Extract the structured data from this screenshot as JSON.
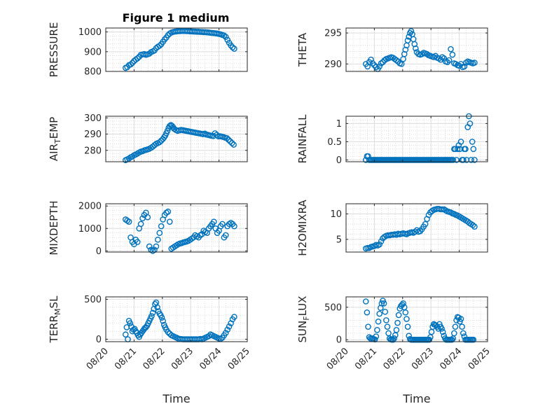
{
  "title": "Figure 1 medium",
  "x_axis_label": "Time",
  "x_tick_labels": [
    "08/20",
    "08/21",
    "08/22",
    "08/23",
    "08/24",
    "08/25"
  ],
  "marker_color": "#0072bd",
  "chart_data": [
    {
      "type": "scatter",
      "ylabel": "PRESSURE",
      "ylim": [
        800,
        1020
      ],
      "yticks": [
        800,
        900,
        1000
      ],
      "ytick_labels": [
        "800",
        "900",
        "1000"
      ],
      "grid": true,
      "minor_grid": true,
      "x": [
        0.7,
        0.76,
        0.82,
        0.88,
        0.94,
        1.0,
        1.06,
        1.12,
        1.18,
        1.24,
        1.3,
        1.36,
        1.42,
        1.48,
        1.54,
        1.6,
        1.66,
        1.72,
        1.78,
        1.84,
        1.9,
        1.96,
        2.02,
        2.08,
        2.14,
        2.2,
        2.26,
        2.32,
        2.38,
        2.44,
        2.5,
        2.56,
        2.62,
        2.68,
        2.74,
        2.8,
        2.86,
        2.92,
        2.98,
        3.04,
        3.1,
        3.16,
        3.22,
        3.28,
        3.34,
        3.4,
        3.46,
        3.52,
        3.58,
        3.64,
        3.7,
        3.76,
        3.82,
        3.88,
        3.94,
        4.0,
        4.06,
        4.12,
        4.18,
        4.24,
        4.3,
        4.36,
        4.42,
        4.48,
        4.54
      ],
      "values": [
        818,
        822,
        832,
        835,
        843,
        853,
        860,
        866,
        874,
        884,
        886,
        888,
        884,
        887,
        890,
        898,
        902,
        906,
        918,
        925,
        930,
        938,
        950,
        962,
        972,
        984,
        992,
        997,
        1000,
        1002,
        1003,
        1004,
        1004,
        1005,
        1005,
        1005,
        1004,
        1004,
        1003,
        1003,
        1002,
        1002,
        1001,
        1001,
        1000,
        1000,
        999,
        999,
        998,
        997,
        996,
        995,
        994,
        993,
        992,
        990,
        988,
        985,
        982,
        975,
        960,
        945,
        932,
        922,
        915
      ]
    },
    {
      "type": "scatter",
      "ylabel": "THETA",
      "ylim": [
        288.8,
        295.8
      ],
      "yticks": [
        290,
        295
      ],
      "ytick_labels": [
        "290",
        "295"
      ],
      "grid": true,
      "minor_grid": true,
      "x": [
        0.7,
        0.76,
        0.82,
        0.88,
        0.94,
        1.0,
        1.06,
        1.12,
        1.18,
        1.24,
        1.3,
        1.36,
        1.42,
        1.48,
        1.54,
        1.6,
        1.66,
        1.72,
        1.78,
        1.84,
        1.9,
        1.96,
        2.02,
        2.06,
        2.1,
        2.14,
        2.18,
        2.22,
        2.26,
        2.3,
        2.34,
        2.38,
        2.42,
        2.46,
        2.5,
        2.56,
        2.62,
        2.68,
        2.74,
        2.8,
        2.86,
        2.92,
        2.98,
        3.04,
        3.1,
        3.16,
        3.22,
        3.28,
        3.34,
        3.4,
        3.46,
        3.52,
        3.58,
        3.64,
        3.7,
        3.76,
        3.82,
        3.88,
        3.94,
        4.0,
        4.06,
        4.12,
        4.18,
        4.24,
        4.3,
        4.36,
        4.42,
        4.48,
        4.54
      ],
      "values": [
        290.0,
        289.6,
        290.3,
        290.7,
        290.1,
        289.8,
        289.5,
        289.2,
        289.6,
        290.1,
        290.3,
        290.6,
        290.8,
        290.9,
        291.0,
        291.1,
        291.0,
        290.8,
        290.6,
        290.4,
        290.1,
        290.0,
        290.8,
        291.6,
        292.3,
        293.0,
        293.8,
        294.4,
        295.0,
        295.3,
        294.8,
        294.0,
        293.2,
        292.5,
        291.9,
        291.6,
        291.5,
        291.6,
        291.8,
        291.7,
        291.6,
        291.4,
        291.3,
        291.2,
        291.1,
        291.3,
        291.0,
        290.9,
        290.7,
        291.1,
        290.9,
        290.4,
        290.3,
        290.6,
        292.4,
        291.5,
        290.1,
        290.0,
        289.8,
        289.7,
        290.0,
        289.5,
        289.6,
        290.2,
        290.4,
        290.3,
        290.2,
        290.1,
        290.2
      ]
    },
    {
      "type": "scatter",
      "ylabel": "AIR",
      "ylabel_subscript": "T",
      "ylabel_tail": "EMP",
      "ylim": [
        273,
        301
      ],
      "yticks": [
        280,
        290,
        300
      ],
      "ytick_labels": [
        "280",
        "290",
        "300"
      ],
      "grid": true,
      "minor_grid": true,
      "x": [
        0.7,
        0.76,
        0.82,
        0.88,
        0.94,
        1.0,
        1.06,
        1.12,
        1.18,
        1.24,
        1.3,
        1.36,
        1.42,
        1.48,
        1.54,
        1.6,
        1.66,
        1.72,
        1.78,
        1.84,
        1.9,
        1.96,
        2.02,
        2.06,
        2.1,
        2.14,
        2.18,
        2.22,
        2.26,
        2.3,
        2.34,
        2.38,
        2.42,
        2.48,
        2.54,
        2.6,
        2.66,
        2.72,
        2.78,
        2.84,
        2.9,
        2.96,
        3.02,
        3.08,
        3.14,
        3.2,
        3.26,
        3.32,
        3.38,
        3.44,
        3.5,
        3.56,
        3.62,
        3.68,
        3.74,
        3.8,
        3.86,
        3.92,
        3.98,
        4.04,
        4.1,
        4.16,
        4.22,
        4.28,
        4.34,
        4.4,
        4.46,
        4.52
      ],
      "values": [
        274,
        274.5,
        275,
        275.8,
        276.2,
        277,
        277.5,
        278,
        278.7,
        279.2,
        279.5,
        280,
        280.3,
        280.6,
        281,
        281.6,
        282.3,
        283.2,
        284,
        284.5,
        285,
        286,
        287,
        288,
        289,
        290.5,
        292,
        293.8,
        295,
        295.6,
        295.1,
        294.2,
        293.2,
        292.5,
        292,
        292.3,
        292.6,
        292.4,
        292.2,
        292,
        291.8,
        291.6,
        291.4,
        291.2,
        291,
        290.8,
        290.6,
        290.4,
        290.2,
        290,
        290.3,
        289.7,
        289.5,
        289.2,
        289,
        288.8,
        290.5,
        289.5,
        288.6,
        288.7,
        288.5,
        288.2,
        287.8,
        287.5,
        286.5,
        285.5,
        284.5,
        283.5
      ]
    },
    {
      "type": "scatter",
      "ylabel": "RAINFALL",
      "ylim": [
        -0.05,
        1.2
      ],
      "yticks": [
        0,
        0.5,
        1
      ],
      "ytick_labels": [
        "0",
        "0.5",
        "1"
      ],
      "grid": true,
      "minor_grid": true,
      "x": [
        0.7,
        0.74,
        0.78,
        0.82,
        0.86,
        0.9,
        0.94,
        0.98,
        1.02,
        1.06,
        1.1,
        1.14,
        1.18,
        1.22,
        1.26,
        1.3,
        1.34,
        1.38,
        1.42,
        1.46,
        1.5,
        1.54,
        1.58,
        1.62,
        1.66,
        1.7,
        1.74,
        1.78,
        1.82,
        1.86,
        1.9,
        1.94,
        1.98,
        2.02,
        2.06,
        2.1,
        2.14,
        2.18,
        2.22,
        2.26,
        2.3,
        2.34,
        2.38,
        2.42,
        2.46,
        2.5,
        2.54,
        2.58,
        2.62,
        2.66,
        2.7,
        2.74,
        2.78,
        2.82,
        2.86,
        2.9,
        2.94,
        2.98,
        3.02,
        3.06,
        3.1,
        3.14,
        3.18,
        3.22,
        3.26,
        3.3,
        3.34,
        3.38,
        3.42,
        3.46,
        3.5,
        3.54,
        3.58,
        3.62,
        3.66,
        3.7,
        3.74,
        3.78,
        3.82,
        3.86,
        3.9,
        3.94,
        3.98,
        4.02,
        4.06,
        4.1,
        4.14,
        4.18,
        4.22,
        4.26,
        4.3,
        4.34,
        4.38,
        4.42,
        4.46,
        4.5,
        4.54
      ],
      "values": [
        0,
        0.1,
        0.1,
        0,
        0,
        0,
        0,
        0,
        0,
        0,
        0,
        0,
        0,
        0,
        0,
        0,
        0,
        0,
        0,
        0,
        0,
        0,
        0,
        0,
        0,
        0,
        0,
        0,
        0,
        0,
        0,
        0,
        0,
        0,
        0,
        0,
        0,
        0,
        0,
        0,
        0,
        0,
        0,
        0,
        0,
        0,
        0,
        0,
        0,
        0,
        0,
        0,
        0,
        0,
        0,
        0,
        0,
        0,
        0,
        0,
        0,
        0,
        0,
        0,
        0,
        0,
        0,
        0,
        0,
        0,
        0,
        0,
        0,
        0,
        0,
        0,
        0,
        0,
        0.3,
        0.3,
        0,
        0.3,
        0.4,
        0.3,
        0.5,
        0,
        0,
        0.3,
        0.3,
        0,
        0.9,
        1.2,
        1.0,
        0,
        0.5,
        0.3,
        0
      ]
    },
    {
      "type": "scatter",
      "ylabel": "MIXDEPTH",
      "ylim": [
        -50,
        2100
      ],
      "yticks": [
        0,
        1000,
        2000
      ],
      "ytick_labels": [
        "0",
        "1000",
        "2000"
      ],
      "grid": true,
      "minor_grid": true,
      "x": [
        0.7,
        0.76,
        0.82,
        0.88,
        0.94,
        1.0,
        1.06,
        1.12,
        1.18,
        1.24,
        1.3,
        1.36,
        1.42,
        1.48,
        1.54,
        1.6,
        1.66,
        1.72,
        1.78,
        1.84,
        1.9,
        1.96,
        2.02,
        2.08,
        2.14,
        2.2,
        2.26,
        2.32,
        2.38,
        2.44,
        2.5,
        2.56,
        2.62,
        2.68,
        2.74,
        2.8,
        2.86,
        2.92,
        2.98,
        3.04,
        3.1,
        3.16,
        3.22,
        3.28,
        3.34,
        3.4,
        3.46,
        3.52,
        3.58,
        3.64,
        3.7,
        3.76,
        3.82,
        3.88,
        3.94,
        4.0,
        4.06,
        4.12,
        4.18,
        4.24,
        4.3,
        4.36,
        4.42,
        4.48,
        4.54
      ],
      "values": [
        1400,
        1350,
        1300,
        600,
        400,
        300,
        500,
        400,
        1000,
        1200,
        1450,
        1600,
        1700,
        1500,
        200,
        50,
        0,
        50,
        200,
        500,
        800,
        1100,
        1400,
        1600,
        1700,
        1750,
        1300,
        100,
        150,
        200,
        250,
        300,
        330,
        350,
        380,
        400,
        420,
        450,
        500,
        550,
        600,
        700,
        650,
        600,
        700,
        750,
        900,
        850,
        800,
        1000,
        1100,
        1200,
        1300,
        1000,
        800,
        900,
        1100,
        1200,
        600,
        700,
        1100,
        1200,
        1250,
        1200,
        1100
      ]
    },
    {
      "type": "scatter",
      "ylabel": "H2OMIXRA",
      "ylim": [
        2.5,
        12
      ],
      "yticks": [
        5,
        10
      ],
      "ytick_labels": [
        "5",
        "10"
      ],
      "grid": true,
      "minor_grid": true,
      "x": [
        0.7,
        0.76,
        0.82,
        0.88,
        0.94,
        1.0,
        1.06,
        1.12,
        1.18,
        1.24,
        1.3,
        1.36,
        1.42,
        1.48,
        1.54,
        1.6,
        1.66,
        1.72,
        1.78,
        1.84,
        1.9,
        1.96,
        2.02,
        2.08,
        2.14,
        2.2,
        2.26,
        2.32,
        2.38,
        2.44,
        2.5,
        2.56,
        2.62,
        2.68,
        2.74,
        2.8,
        2.86,
        2.92,
        2.98,
        3.04,
        3.1,
        3.16,
        3.22,
        3.28,
        3.34,
        3.4,
        3.46,
        3.52,
        3.58,
        3.64,
        3.7,
        3.76,
        3.82,
        3.88,
        3.94,
        4.0,
        4.06,
        4.12,
        4.18,
        4.24,
        4.3,
        4.36,
        4.42,
        4.48,
        4.54
      ],
      "values": [
        3.2,
        3.3,
        3.3,
        3.5,
        3.6,
        3.7,
        3.9,
        3.8,
        4.0,
        4.6,
        5.2,
        5.5,
        5.7,
        5.8,
        5.8,
        5.9,
        5.9,
        6.0,
        5.9,
        6.1,
        6.0,
        6.1,
        6.2,
        6.1,
        6.0,
        6.2,
        6.3,
        6.4,
        6.3,
        6.5,
        6.8,
        6.5,
        6.6,
        7.0,
        7.5,
        8.0,
        9.0,
        9.8,
        10.3,
        10.6,
        10.8,
        10.9,
        11.0,
        11.0,
        10.9,
        10.9,
        10.9,
        10.7,
        10.5,
        10.4,
        10.3,
        10.1,
        10.0,
        9.8,
        9.7,
        9.5,
        9.3,
        9.1,
        8.9,
        8.7,
        8.5,
        8.2,
        8.0,
        7.8,
        7.5
      ]
    },
    {
      "type": "scatter",
      "ylabel": "TERR",
      "ylabel_subscript": "M",
      "ylabel_tail": "SL",
      "ylim": [
        -30,
        530
      ],
      "yticks": [
        0,
        500
      ],
      "ytick_labels": [
        "0",
        "500"
      ],
      "grid": true,
      "minor_grid": true,
      "x": [
        0.7,
        0.74,
        0.78,
        0.82,
        0.86,
        0.9,
        0.94,
        0.98,
        1.02,
        1.06,
        1.1,
        1.14,
        1.18,
        1.22,
        1.26,
        1.3,
        1.34,
        1.38,
        1.42,
        1.46,
        1.5,
        1.54,
        1.58,
        1.62,
        1.66,
        1.7,
        1.74,
        1.78,
        1.82,
        1.86,
        1.9,
        1.94,
        1.98,
        2.02,
        2.06,
        2.1,
        2.14,
        2.2,
        2.26,
        2.32,
        2.38,
        2.44,
        2.5,
        2.56,
        2.62,
        2.68,
        2.74,
        2.8,
        2.86,
        2.92,
        2.98,
        3.04,
        3.1,
        3.16,
        3.22,
        3.28,
        3.34,
        3.4,
        3.46,
        3.52,
        3.58,
        3.64,
        3.7,
        3.76,
        3.82,
        3.88,
        3.94,
        4.0,
        4.06,
        4.12,
        4.18,
        4.24,
        4.3,
        4.36,
        4.42,
        4.48,
        4.54
      ],
      "values": [
        60,
        150,
        0,
        230,
        200,
        160,
        100,
        120,
        130,
        100,
        80,
        50,
        30,
        60,
        80,
        100,
        120,
        140,
        150,
        170,
        200,
        230,
        260,
        290,
        330,
        380,
        440,
        460,
        400,
        350,
        320,
        300,
        270,
        230,
        180,
        150,
        120,
        90,
        70,
        50,
        40,
        30,
        20,
        10,
        5,
        2,
        0,
        0,
        0,
        0,
        0,
        0,
        0,
        0,
        0,
        0,
        5,
        0,
        10,
        20,
        30,
        40,
        60,
        50,
        40,
        30,
        20,
        10,
        5,
        20,
        50,
        80,
        120,
        160,
        200,
        250,
        280
      ]
    },
    {
      "type": "scatter",
      "ylabel": "SUN",
      "ylabel_subscript": "F",
      "ylabel_tail": "LUX",
      "ylim": [
        -30,
        660
      ],
      "yticks": [
        0,
        500
      ],
      "ytick_labels": [
        "0",
        "500"
      ],
      "grid": true,
      "minor_grid": true,
      "x": [
        0.7,
        0.74,
        0.78,
        0.82,
        0.86,
        0.9,
        0.94,
        0.98,
        1.02,
        1.06,
        1.1,
        1.14,
        1.18,
        1.22,
        1.26,
        1.3,
        1.34,
        1.38,
        1.42,
        1.46,
        1.5,
        1.54,
        1.58,
        1.62,
        1.66,
        1.7,
        1.74,
        1.78,
        1.82,
        1.86,
        1.9,
        1.94,
        1.98,
        2.02,
        2.06,
        2.1,
        2.14,
        2.18,
        2.22,
        2.26,
        2.3,
        2.34,
        2.38,
        2.42,
        2.46,
        2.5,
        2.54,
        2.58,
        2.62,
        2.66,
        2.7,
        2.74,
        2.78,
        2.82,
        2.86,
        2.9,
        2.94,
        2.98,
        3.02,
        3.06,
        3.1,
        3.14,
        3.18,
        3.22,
        3.26,
        3.3,
        3.34,
        3.38,
        3.42,
        3.46,
        3.5,
        3.54,
        3.58,
        3.62,
        3.66,
        3.7,
        3.74,
        3.78,
        3.82,
        3.86,
        3.9,
        3.94,
        3.98,
        4.02,
        4.06,
        4.1,
        4.14,
        4.18,
        4.22,
        4.26,
        4.3,
        4.34,
        4.38,
        4.42,
        4.46,
        4.5
      ],
      "values": [
        590,
        420,
        200,
        40,
        20,
        10,
        20,
        10,
        5,
        50,
        150,
        280,
        400,
        490,
        560,
        600,
        560,
        430,
        300,
        200,
        100,
        20,
        5,
        0,
        0,
        20,
        70,
        150,
        260,
        380,
        480,
        520,
        540,
        560,
        500,
        420,
        320,
        200,
        60,
        10,
        0,
        0,
        0,
        0,
        0,
        0,
        0,
        0,
        0,
        0,
        0,
        0,
        0,
        0,
        0,
        0,
        0,
        40,
        120,
        200,
        240,
        230,
        220,
        200,
        170,
        240,
        200,
        170,
        120,
        60,
        20,
        0,
        0,
        0,
        0,
        0,
        0,
        20,
        100,
        200,
        300,
        350,
        340,
        280,
        320,
        200,
        100,
        50,
        0,
        0,
        0,
        0,
        0,
        0,
        0,
        0
      ]
    }
  ]
}
